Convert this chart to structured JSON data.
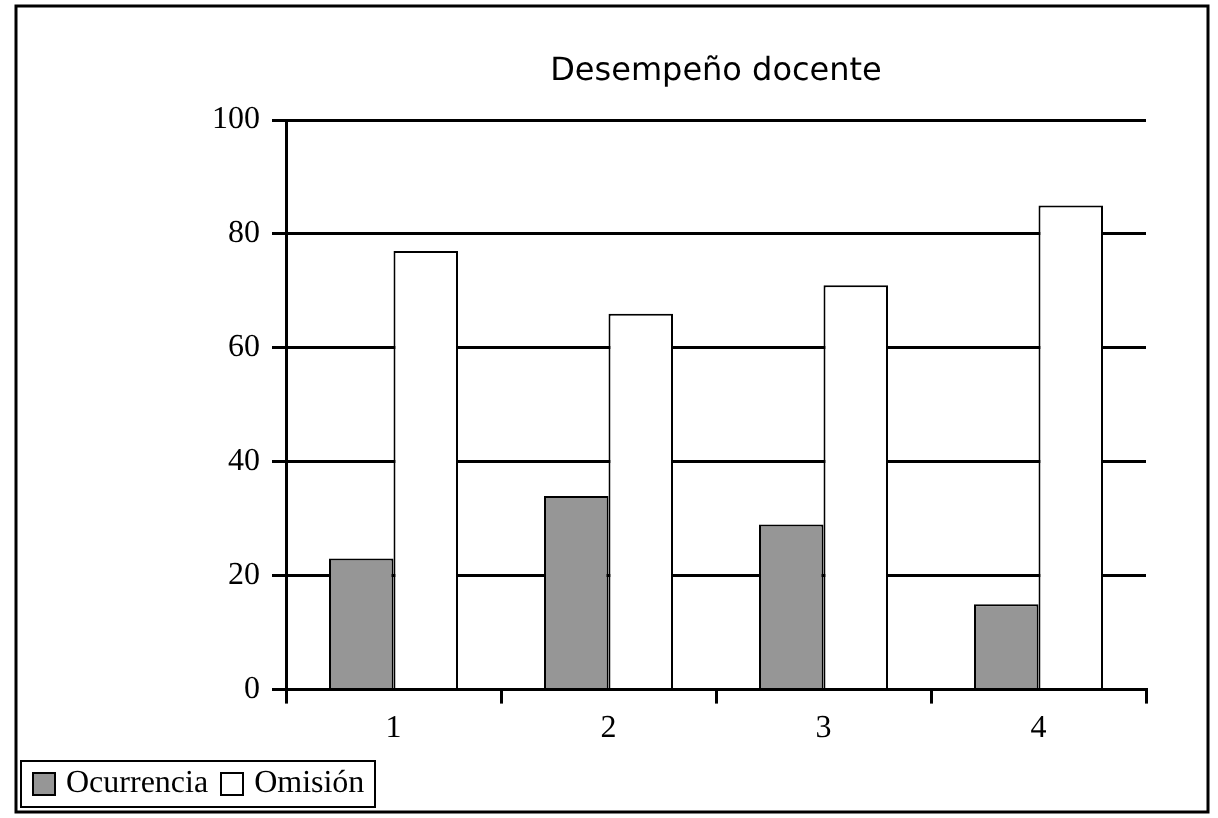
{
  "chart_data": {
    "type": "bar",
    "title": "Desempeño docente",
    "categories": [
      "1",
      "2",
      "3",
      "4"
    ],
    "series": [
      {
        "name": "Ocurrencia",
        "color": "#969696",
        "values": [
          23,
          34,
          29,
          15
        ]
      },
      {
        "name": "Omisión",
        "color": "#ffffff",
        "values": [
          77,
          66,
          71,
          85
        ]
      }
    ],
    "ylim": [
      0,
      100
    ],
    "yticks": [
      0,
      20,
      40,
      60,
      80,
      100
    ],
    "grid": "y",
    "legend": "bottom left"
  }
}
